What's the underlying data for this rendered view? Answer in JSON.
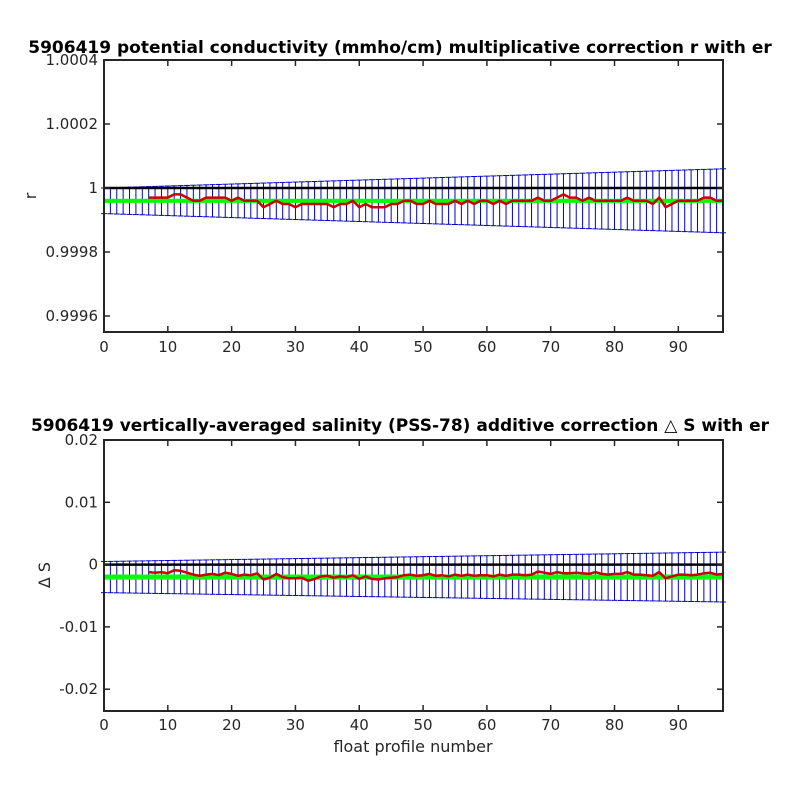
{
  "chart_data": [
    {
      "type": "line",
      "title": "5906419 potential conductivity (mmho/cm) multiplicative correction r with er",
      "xlabel": "",
      "ylabel": "r",
      "xlim": [
        0,
        97
      ],
      "ylim": [
        0.99955,
        1.0004
      ],
      "xticks": [
        0,
        10,
        20,
        30,
        40,
        50,
        60,
        70,
        80,
        90
      ],
      "xtick_labels": [
        "0",
        "10",
        "20",
        "30",
        "40",
        "50",
        "60",
        "70",
        "80",
        "90"
      ],
      "yticks": [
        0.9996,
        0.9998,
        1.0,
        1.0002,
        1.0004
      ],
      "ytick_labels": [
        "0.9996",
        "0.9998",
        "1",
        "1.0002",
        "1.0004"
      ],
      "grid": false,
      "reference_line": 1.0,
      "colors": {
        "errorbar": "#0000cc",
        "fit": "#00ff00",
        "profile": "#cc0000",
        "reference": "#000000"
      },
      "series": [
        {
          "kind": "fit_with_errorbars",
          "x_start": 0,
          "x_end": 97,
          "center_start": 0.99996,
          "center_end": 0.99996,
          "halfwidth_start": 4e-06,
          "halfwidth_end": 4e-06,
          "error_start": 4e-05,
          "error_end": 0.0001
        },
        {
          "kind": "profile",
          "x_start": 7,
          "values": [
            0.99997,
            0.99997,
            0.99997,
            0.99997,
            0.99998,
            0.99998,
            0.99997,
            0.99996,
            0.99996,
            0.99997,
            0.99997,
            0.99997,
            0.99997,
            0.99996,
            0.99997,
            0.99996,
            0.99996,
            0.99996,
            0.99994,
            0.99995,
            0.99996,
            0.99995,
            0.99995,
            0.99994,
            0.99995,
            0.99995,
            0.99995,
            0.99995,
            0.99995,
            0.99994,
            0.99995,
            0.99995,
            0.99996,
            0.99994,
            0.99995,
            0.99994,
            0.99994,
            0.99994,
            0.99995,
            0.99995,
            0.99996,
            0.99996,
            0.99995,
            0.99995,
            0.99996,
            0.99995,
            0.99995,
            0.99995,
            0.99996,
            0.99995,
            0.99996,
            0.99995,
            0.99996,
            0.99996,
            0.99995,
            0.99996,
            0.99995,
            0.99996,
            0.99996,
            0.99996,
            0.99996,
            0.99997,
            0.99996,
            0.99996,
            0.99997,
            0.99998,
            0.99997,
            0.99997,
            0.99996,
            0.99997,
            0.99996,
            0.99996,
            0.99996,
            0.99996,
            0.99996,
            0.99997,
            0.99996,
            0.99996,
            0.99996,
            0.99995,
            0.99997,
            0.99994,
            0.99995,
            0.99996,
            0.99996,
            0.99996,
            0.99996,
            0.99997,
            0.99997,
            0.99996,
            0.99996
          ]
        }
      ]
    },
    {
      "type": "line",
      "title": "5906419 vertically-averaged salinity (PSS-78) additive correction △ S with er",
      "xlabel": "float profile number",
      "ylabel": "Δ S",
      "xlim": [
        0,
        97
      ],
      "ylim": [
        -0.0235,
        0.02
      ],
      "xticks": [
        0,
        10,
        20,
        30,
        40,
        50,
        60,
        70,
        80,
        90
      ],
      "xtick_labels": [
        "0",
        "10",
        "20",
        "30",
        "40",
        "50",
        "60",
        "70",
        "80",
        "90"
      ],
      "yticks": [
        -0.02,
        -0.01,
        0.0,
        0.01,
        0.02
      ],
      "ytick_labels": [
        "-0.02",
        "-0.01",
        "0",
        "0.01",
        "0.02"
      ],
      "grid": false,
      "reference_line": 0.0,
      "colors": {
        "errorbar": "#0000cc",
        "fit": "#00ff00",
        "profile": "#cc0000",
        "reference": "#000000"
      },
      "series": [
        {
          "kind": "fit_with_errorbars",
          "x_start": 0,
          "x_end": 97,
          "center_start": -0.002,
          "center_end": -0.002,
          "halfwidth_start": 0.0003,
          "halfwidth_end": 0.0003,
          "error_start": 0.0025,
          "error_end": 0.004
        },
        {
          "kind": "profile",
          "x_start": 7,
          "values": [
            -0.0012,
            -0.0013,
            -0.0012,
            -0.0014,
            -0.0009,
            -0.001,
            -0.0013,
            -0.0016,
            -0.0018,
            -0.0016,
            -0.0015,
            -0.0017,
            -0.0013,
            -0.0015,
            -0.0018,
            -0.0016,
            -0.0017,
            -0.0014,
            -0.0024,
            -0.0021,
            -0.0015,
            -0.002,
            -0.0022,
            -0.0022,
            -0.0021,
            -0.0026,
            -0.0023,
            -0.0019,
            -0.0018,
            -0.0021,
            -0.0019,
            -0.002,
            -0.0017,
            -0.0023,
            -0.0019,
            -0.0023,
            -0.0024,
            -0.0022,
            -0.0021,
            -0.002,
            -0.0017,
            -0.0016,
            -0.0018,
            -0.0017,
            -0.0015,
            -0.0018,
            -0.0017,
            -0.0019,
            -0.0016,
            -0.0018,
            -0.0016,
            -0.0018,
            -0.0017,
            -0.0017,
            -0.0019,
            -0.0016,
            -0.0018,
            -0.0016,
            -0.0016,
            -0.0017,
            -0.0016,
            -0.0011,
            -0.0013,
            -0.0015,
            -0.0012,
            -0.0014,
            -0.0014,
            -0.0013,
            -0.0014,
            -0.0015,
            -0.0012,
            -0.0015,
            -0.0016,
            -0.0015,
            -0.0015,
            -0.0012,
            -0.0016,
            -0.0016,
            -0.0017,
            -0.0018,
            -0.0012,
            -0.0022,
            -0.0019,
            -0.0016,
            -0.0016,
            -0.0017,
            -0.0016,
            -0.0014,
            -0.0013,
            -0.0016,
            -0.0015
          ]
        }
      ]
    }
  ]
}
